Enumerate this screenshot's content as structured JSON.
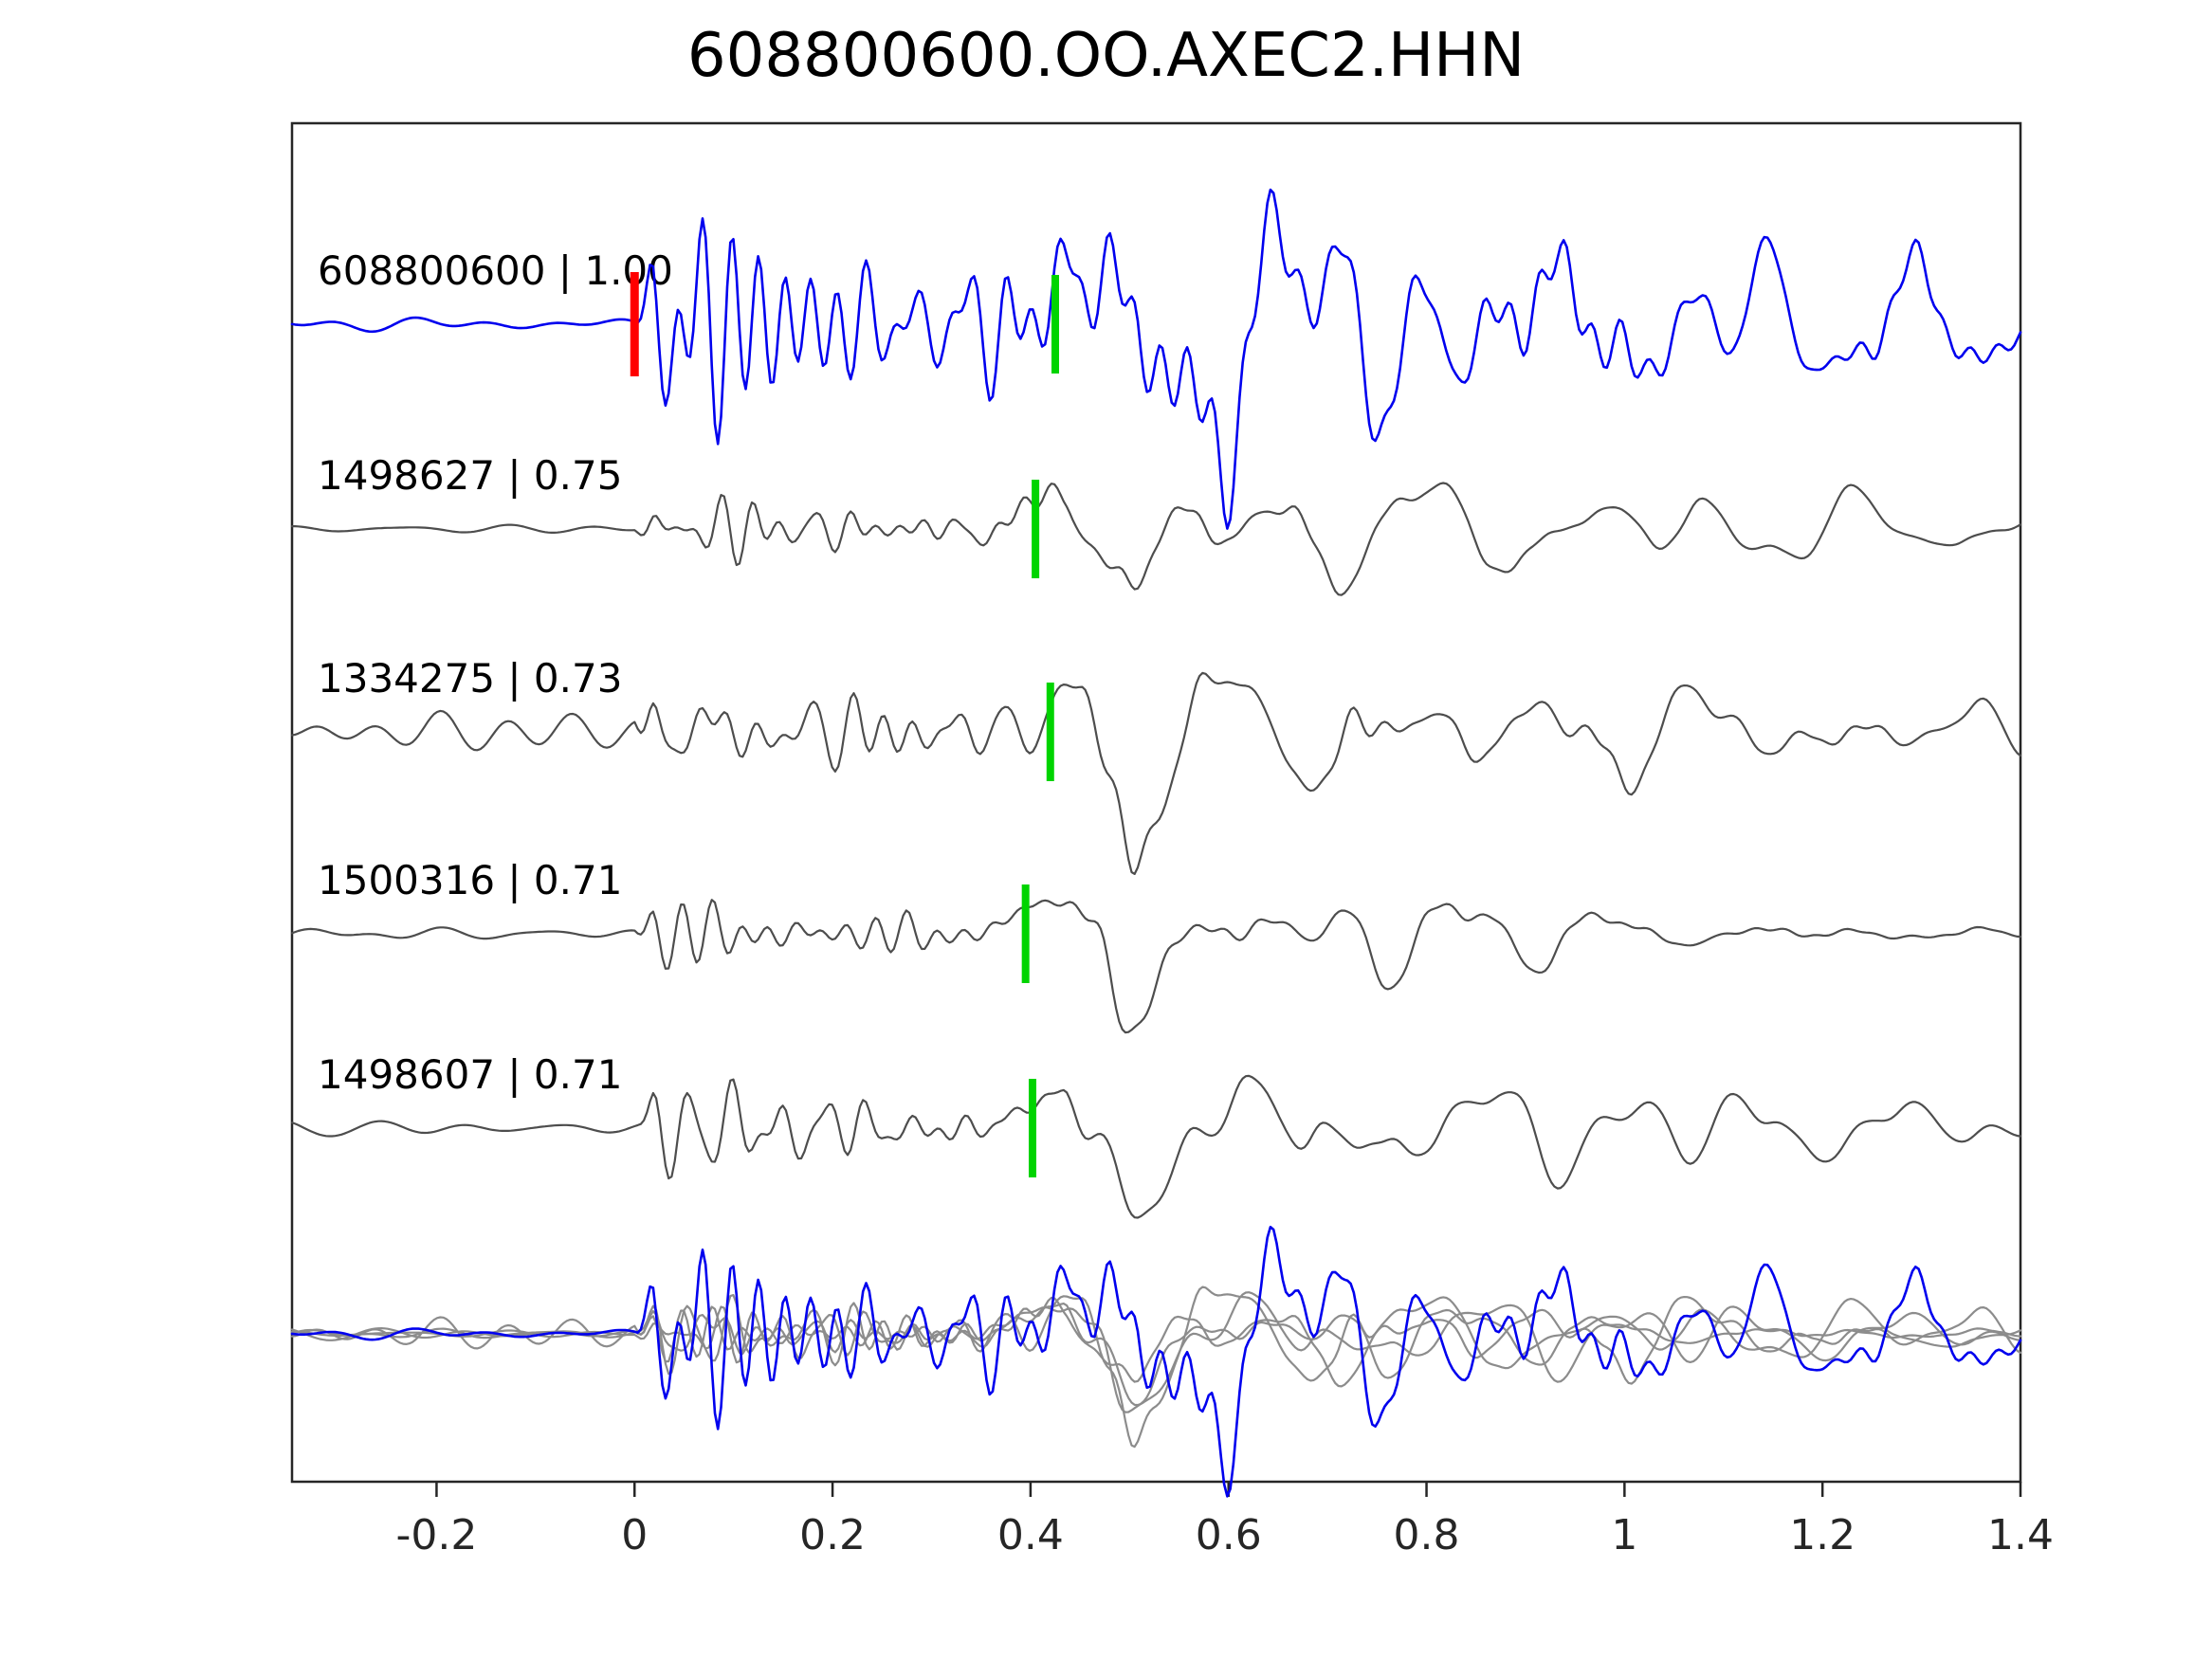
{
  "title": "608800600.OO.AXEC2.HHN",
  "chart_data": {
    "type": "line",
    "title": "608800600.OO.AXEC2.HHN",
    "xlabel": "",
    "ylabel": "",
    "xlim": [
      -0.346,
      1.4
    ],
    "grid": false,
    "legend": "none",
    "x_ticks": [
      -0.2,
      0,
      0.2,
      0.4,
      0.6,
      0.8,
      1,
      1.2,
      1.4
    ],
    "x_tick_labels": [
      "-0.2",
      "0",
      "0.2",
      "0.4",
      "0.6",
      "0.8",
      "1",
      "1.2",
      "1.4"
    ],
    "colors": {
      "template_trace": "#0000ee",
      "match_trace": "#4d4d4d",
      "overlay_gray": "#8c8c8c",
      "pick_green": "#00d400",
      "pick_red": "#ff0000",
      "axis": "#262626",
      "background": "#ffffff"
    },
    "traces": [
      {
        "id": "608800600",
        "similarity": "1.00",
        "label": "608800600 | 1.00",
        "color_role": "template_trace",
        "green_pick_x": 0.425,
        "red_pick_x": 0.0
      },
      {
        "id": "1498627",
        "similarity": "0.75",
        "label": "1498627 | 0.75",
        "color_role": "match_trace",
        "green_pick_x": 0.405
      },
      {
        "id": "1334275",
        "similarity": "0.73",
        "label": "1334275 | 0.73",
        "color_role": "match_trace",
        "green_pick_x": 0.42
      },
      {
        "id": "1500316",
        "similarity": "0.71",
        "label": "1500316 | 0.71",
        "color_role": "match_trace",
        "green_pick_x": 0.395
      },
      {
        "id": "1498607",
        "similarity": "0.71",
        "label": "1498607 | 0.71",
        "color_role": "match_trace",
        "green_pick_x": 0.402
      }
    ],
    "overlay_row": {
      "description": "all matched traces and the template superimposed, aligned on the pick",
      "includes": [
        "1498627",
        "1334275",
        "1500316",
        "1498607",
        "608800600"
      ]
    }
  }
}
